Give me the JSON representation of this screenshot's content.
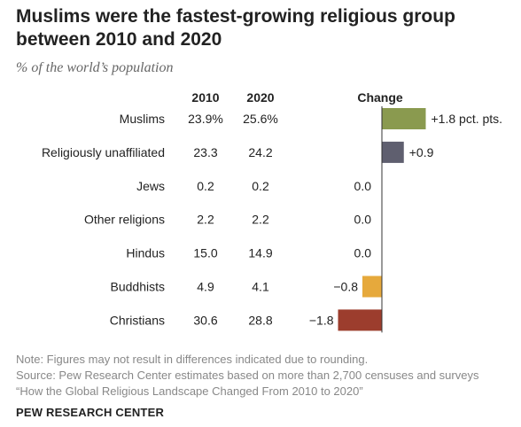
{
  "title": "Muslims were the fastest-growing religious group between 2010 and 2020",
  "subtitle": "% of the world’s population",
  "chart_data": {
    "type": "bar",
    "columns": [
      "2010",
      "2020",
      "Change"
    ],
    "categories": [
      "Muslims",
      "Religiously unaffiliated",
      "Jews",
      "Other religions",
      "Hindus",
      "Buddhists",
      "Christians"
    ],
    "values_2010": [
      "23.9%",
      "23.3",
      "0.2",
      "2.2",
      "15.0",
      "4.9",
      "30.6"
    ],
    "values_2020": [
      "25.6%",
      "24.2",
      "0.2",
      "2.2",
      "14.9",
      "4.1",
      "28.8"
    ],
    "change": [
      1.8,
      0.9,
      0.0,
      0.0,
      0.0,
      -0.8,
      -1.8
    ],
    "change_labels": [
      "+1.8 pct. pts.",
      "+0.9",
      "0.0",
      "0.0",
      "0.0",
      "−0.8",
      "−1.8"
    ],
    "bar_colors": [
      "#8a9a4f",
      "#5f5f6f",
      "#ffffff",
      "#ffffff",
      "#ffffff",
      "#e6a93c",
      "#9c3d2d"
    ],
    "axis_color": "#333333"
  },
  "notes": {
    "note": "Note: Figures may not result in differences indicated due to rounding.",
    "source": "Source: Pew Research Center estimates based on more than 2,700 censuses and surveys",
    "report": "“How the Global Religious Landscape Changed From 2010 to 2020”"
  },
  "brand": "PEW RESEARCH CENTER"
}
